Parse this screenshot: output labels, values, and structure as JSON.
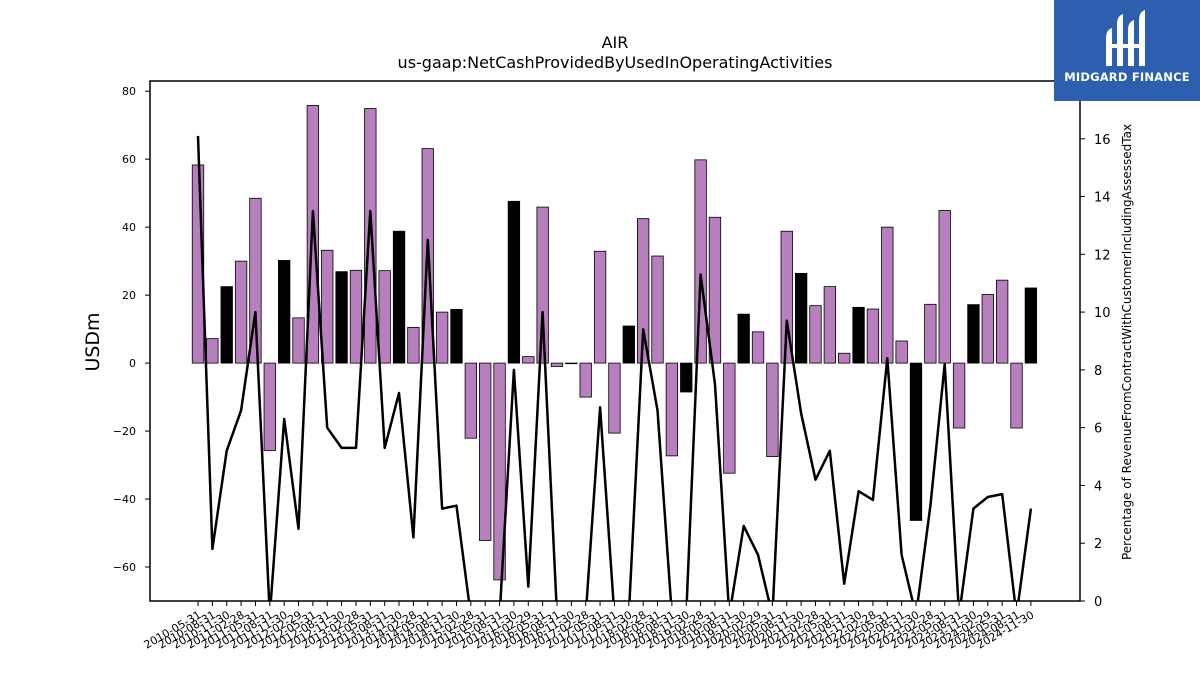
{
  "logo": {
    "text": "MIDGARD FINANCE",
    "brand_color": "#2d5fb0",
    "icon": "midgard-m-logo-icon"
  },
  "chart_data": {
    "type": "bar",
    "title": "AIR",
    "subtitle": "us-gaap:NetCashProvidedByUsedInOperatingActivities",
    "ylabel": "USDm",
    "y2label": "Percentage of RevenueFromContractWithCustomerIncludingAssessedTax",
    "ylim": [
      -70,
      83
    ],
    "y2lim": [
      0,
      18
    ],
    "yticks": [
      80,
      60,
      40,
      20,
      0,
      -20,
      -40,
      -60
    ],
    "y2ticks": [
      0,
      2,
      4,
      6,
      8,
      10,
      12,
      14,
      16
    ],
    "colors": {
      "quarter": "#b87fbf",
      "fiscal_year_end": "#000000",
      "line": "#000000"
    },
    "categories": [
      "2010-05-31",
      "2010-08-31",
      "2010-11-30",
      "2011-02-28",
      "2011-05-31",
      "2011-08-31",
      "2011-11-30",
      "2012-02-29",
      "2012-05-31",
      "2012-08-31",
      "2012-11-30",
      "2013-02-28",
      "2013-05-31",
      "2013-08-31",
      "2013-11-30",
      "2014-02-28",
      "2014-05-31",
      "2014-08-31",
      "2014-11-30",
      "2015-02-28",
      "2015-05-31",
      "2015-08-31",
      "2015-11-30",
      "2016-02-29",
      "2016-05-31",
      "2016-08-31",
      "2016-11-30",
      "2017-02-28",
      "2017-05-31",
      "2017-08-31",
      "2017-11-30",
      "2018-02-28",
      "2018-05-31",
      "2018-08-31",
      "2018-11-30",
      "2019-02-28",
      "2019-05-31",
      "2019-08-31",
      "2019-11-30",
      "2020-02-29",
      "2020-05-31",
      "2020-08-31",
      "2020-11-30",
      "2021-02-28",
      "2021-05-31",
      "2021-08-31",
      "2021-11-30",
      "2022-02-28",
      "2022-05-31",
      "2022-08-31",
      "2022-11-30",
      "2023-02-28",
      "2023-05-31",
      "2023-08-31",
      "2023-11-30",
      "2024-02-29",
      "2024-05-31",
      "2024-08-31",
      "2024-11-30"
    ],
    "series": [
      {
        "values": [
          58.3,
          7.2,
          22.5,
          30,
          48.5,
          -25.7,
          30.2,
          13.3,
          75.8,
          33.2,
          26.9,
          27.3,
          74.9,
          27.2,
          38.8,
          10.5,
          63.1,
          15,
          15.8,
          -22.1,
          -52.2,
          -63.8,
          47.6,
          1.9,
          45.9,
          -1,
          0,
          -10,
          32.9,
          -20.6,
          10.9,
          42.5,
          31.5,
          -27.3,
          -8.5,
          59.8,
          42.9,
          -32.4,
          14.4,
          9.2,
          -27.5,
          38.8,
          26.4,
          16.9,
          22.5,
          2.9,
          16.4,
          15.9,
          40,
          6.5,
          -46.3,
          17.3,
          44.9,
          -19.1,
          17.2,
          20.2,
          24.4,
          -19.1,
          22.1
        ],
        "fiscal_year_end": [
          false,
          false,
          true,
          false,
          false,
          false,
          true,
          false,
          false,
          false,
          true,
          false,
          false,
          false,
          true,
          false,
          false,
          false,
          true,
          false,
          false,
          false,
          true,
          false,
          false,
          false,
          true,
          false,
          false,
          false,
          true,
          false,
          false,
          false,
          true,
          false,
          false,
          false,
          true,
          false,
          false,
          false,
          true,
          false,
          false,
          false,
          true,
          false,
          false,
          false,
          true,
          false,
          false,
          false,
          true,
          false,
          false,
          false,
          true
        ]
      },
      {
        "axis": "right",
        "values": [
          16.1,
          1.8,
          5.2,
          6.6,
          10,
          -0.5,
          6.3,
          2.5,
          13.5,
          6,
          5.3,
          5.3,
          13.5,
          5.3,
          7.2,
          2.2,
          12.5,
          3.2,
          3.3,
          -0.5,
          -0.5,
          -0.5,
          8,
          0.5,
          10,
          -0.5,
          -0.5,
          -0.5,
          6.7,
          -0.5,
          -0.5,
          9.4,
          6.6,
          -0.5,
          -0.5,
          11.3,
          7.5,
          -0.5,
          2.6,
          1.6,
          -0.5,
          9.7,
          6.5,
          4.2,
          5.2,
          0.6,
          3.8,
          3.5,
          8.4,
          1.6,
          -0.5,
          3.3,
          8.2,
          -0.5,
          3.2,
          3.6,
          3.7,
          -0.5,
          3.2
        ]
      }
    ]
  }
}
